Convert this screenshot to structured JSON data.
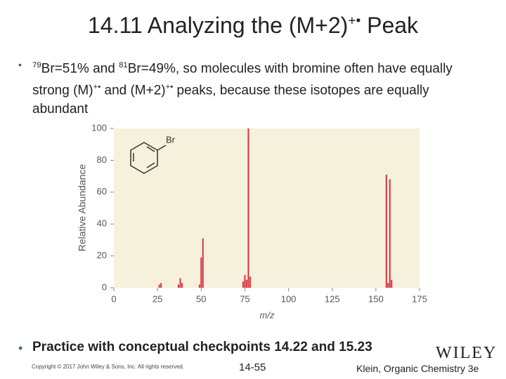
{
  "title": [
    "14.11 Analyzing the (M+2)",
    "+•",
    " Peak"
  ],
  "bullet_1": [
    "79",
    "Br=51% and ",
    "81",
    "Br=49%, so molecules with bromine often have equally strong (M)",
    "+•",
    " and (M+2)",
    "+•",
    " peaks, because these isotopes are equally abundant"
  ],
  "bullet_2": "Practice with conceptual checkpoints 14.22 and 15.23",
  "footer": {
    "copyright": "Copyright © 2017 John Wiley & Sons, Inc. All rights reserved.",
    "page": "14-55",
    "credit": "Klein, Organic Chemistry 3e",
    "logo": "WILEY"
  },
  "chart_data": {
    "type": "stem",
    "x_label": "m/z",
    "y_label": "Relative Abundance",
    "annotation": "Br",
    "x": [
      26,
      27,
      37,
      38,
      39,
      49,
      50,
      51,
      74,
      75,
      76,
      77,
      78,
      156,
      157,
      158,
      159
    ],
    "values": [
      2,
      3,
      2,
      6,
      3,
      2,
      19,
      31,
      4,
      8,
      5,
      100,
      7,
      71,
      3,
      68,
      5
    ],
    "color": "#d8323f",
    "background": "#f6f1dc",
    "xlim": [
      0,
      175
    ],
    "xticks": [
      0,
      25,
      50,
      75,
      100,
      125,
      150,
      175
    ],
    "ylim": [
      0,
      100
    ],
    "yticks": [
      0,
      20,
      40,
      60,
      80,
      100
    ]
  }
}
